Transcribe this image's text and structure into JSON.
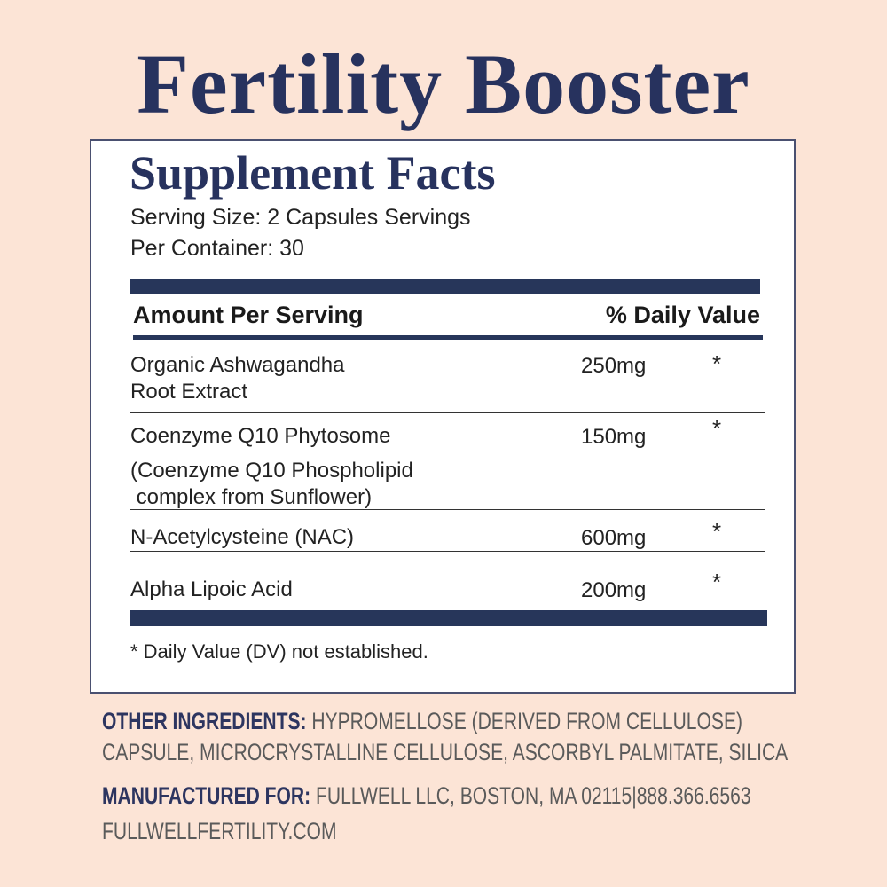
{
  "title": "Fertility Booster",
  "panel": {
    "heading": "Supplement Facts",
    "serving_line1": "Serving Size: 2 Capsules Servings",
    "serving_line2": "Per Container: 30",
    "col_amount": "Amount Per Serving",
    "col_dv": "% Daily Value",
    "rows": [
      {
        "name": [
          "Organic Ashwagandha",
          "Root Extract"
        ],
        "amount": "250mg",
        "dv": "*"
      },
      {
        "name": [
          "Coenzyme Q10 Phytosome",
          "(Coenzyme Q10 Phospholipid",
          " complex from Sunflower)"
        ],
        "amount": "150mg",
        "dv": "*"
      },
      {
        "name": [
          "N-Acetylcysteine (NAC)"
        ],
        "amount": "600mg",
        "dv": "*"
      },
      {
        "name": [
          "Alpha Lipoic Acid"
        ],
        "amount": "200mg",
        "dv": "*"
      }
    ],
    "footnote": "* Daily Value (DV) not established."
  },
  "other": {
    "label": "OTHER INGREDIENTS:",
    "line1": " HYPROMELLOSE (DERIVED FROM CELLULOSE)",
    "line2": "CAPSULE, MICROCRYSTALLINE CELLULOSE, ASCORBYL PALMITATE, SILICA"
  },
  "manufacturer": {
    "label": "MANUFACTURED FOR:",
    "text": " FULLWELL LLC, BOSTON, MA 02115|888.366.6563",
    "website": "FULLWELLFERTILITY.COM"
  },
  "colors": {
    "background": "#fce4d6",
    "navy": "#27325e",
    "panel": "#ffffff"
  }
}
